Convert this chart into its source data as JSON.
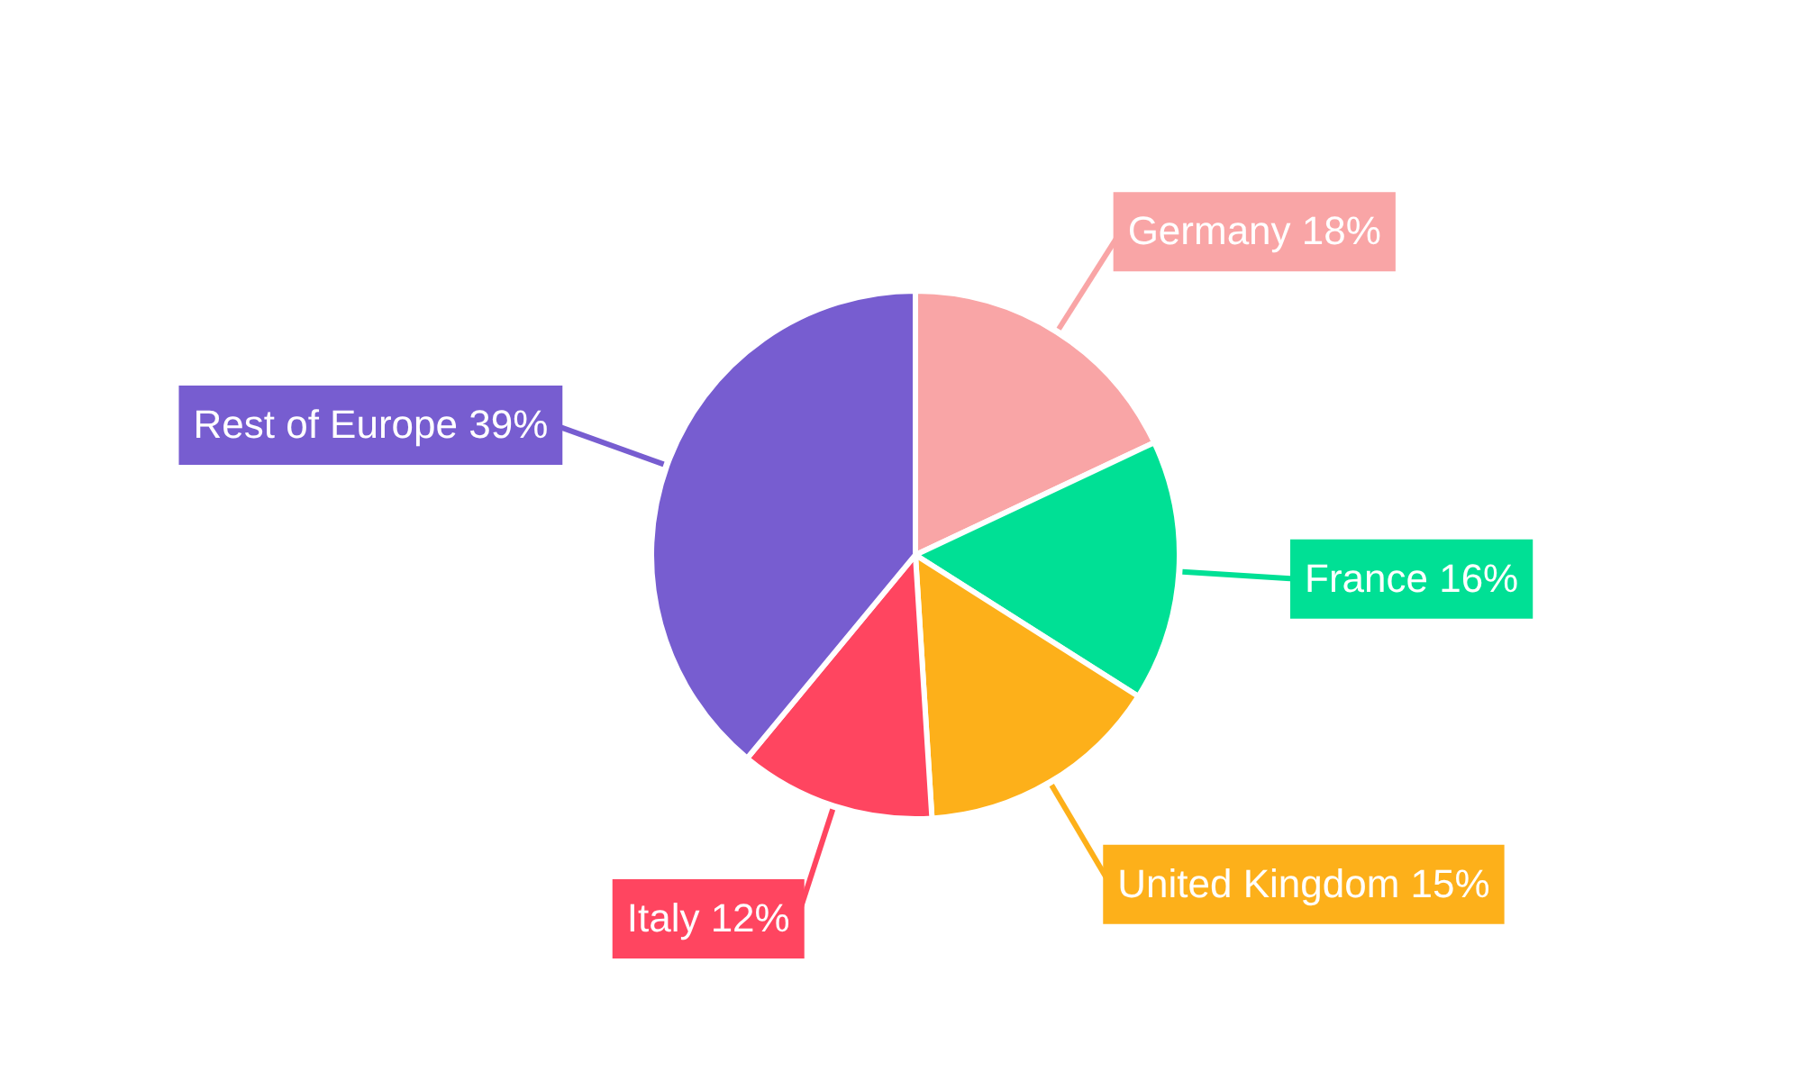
{
  "chart_data": {
    "type": "pie",
    "categories": [
      "Germany",
      "France",
      "United Kingdom",
      "Italy",
      "Rest of Europe"
    ],
    "values": [
      18,
      16,
      15,
      12,
      39
    ],
    "value_labels": [
      "18%",
      "16%",
      "15%",
      "12%",
      "39%"
    ],
    "colors": [
      "#f9a5a6",
      "#00e095",
      "#fdb01a",
      "#ff4560",
      "#775dd0"
    ],
    "legend": false
  }
}
